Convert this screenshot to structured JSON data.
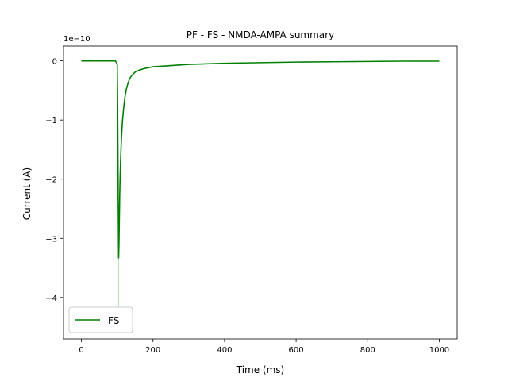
{
  "chart_data": {
    "type": "line",
    "title": "PF - FS - NMDA-AMPA summary",
    "xlabel": "Time (ms)",
    "ylabel": "Current (A)",
    "y_offset_text": "1e−10",
    "xlim": [
      -50,
      1050
    ],
    "ylim": [
      -4.7,
      0.25
    ],
    "xticks": [
      0,
      200,
      400,
      600,
      800,
      1000
    ],
    "xtick_labels": [
      "0",
      "200",
      "400",
      "600",
      "800",
      "1000"
    ],
    "yticks": [
      0,
      -1,
      -2,
      -3,
      -4
    ],
    "ytick_labels": [
      "0",
      "−1",
      "−2",
      "−3",
      "−4"
    ],
    "grid": false,
    "legend": {
      "location": "lower-left",
      "entries": [
        "FS"
      ]
    },
    "series": [
      {
        "name": "FS",
        "color": "#008000",
        "x": [
          0,
          20,
          40,
          60,
          80,
          95,
          100,
          101,
          102,
          103,
          104,
          105,
          106,
          107,
          108,
          110,
          112,
          115,
          118,
          122,
          126,
          130,
          135,
          140,
          150,
          160,
          175,
          200,
          250,
          300,
          400,
          500,
          600,
          700,
          800,
          900,
          1000
        ],
        "y": [
          0.0,
          0.0,
          0.0,
          0.0,
          0.0,
          0.0,
          -0.05,
          -0.6,
          -1.5,
          -2.5,
          -3.33,
          -3.1,
          -2.7,
          -2.3,
          -2.0,
          -1.6,
          -1.3,
          -1.0,
          -0.8,
          -0.6,
          -0.47,
          -0.38,
          -0.3,
          -0.25,
          -0.19,
          -0.16,
          -0.13,
          -0.1,
          -0.08,
          -0.06,
          -0.04,
          -0.03,
          -0.02,
          -0.015,
          -0.01,
          -0.005,
          -0.005
        ]
      }
    ],
    "faint_trace": {
      "color": "#b9dcb9",
      "x": [
        104,
        104
      ],
      "y": [
        -3.33,
        -4.4
      ]
    }
  }
}
